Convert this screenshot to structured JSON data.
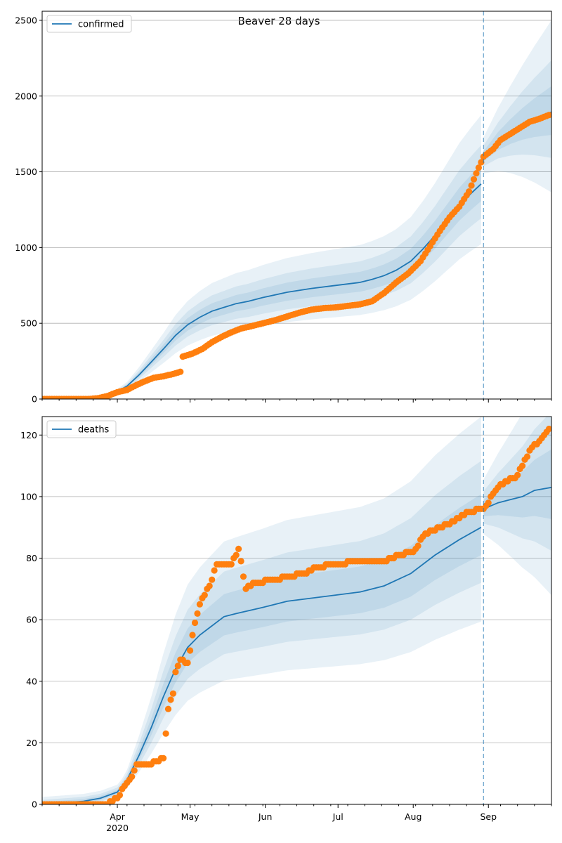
{
  "figure_title": "Beaver 28 days",
  "colors": {
    "band": "#1f77b4",
    "model": "#1f77b4",
    "observed": "#ff7f0e",
    "grid": "#b0b0b0"
  },
  "x_axis": {
    "month_ticks": [
      {
        "date": "2020-04-01",
        "label": "Apr",
        "sublabel": "2020"
      },
      {
        "date": "2020-05-01",
        "label": "May"
      },
      {
        "date": "2020-06-01",
        "label": "Jun"
      },
      {
        "date": "2020-07-01",
        "label": "Jul"
      },
      {
        "date": "2020-08-01",
        "label": "Aug"
      },
      {
        "date": "2020-09-01",
        "label": "Sep"
      }
    ],
    "range": [
      "2020-03-01",
      "2020-09-27"
    ]
  },
  "chart_data": [
    {
      "type": "line",
      "title": "Beaver 28 days",
      "legend": [
        "confirmed"
      ],
      "legend_position": "top-left",
      "grid": "horizontal",
      "ylim": [
        0,
        2560
      ],
      "yticks": [
        0,
        500,
        1000,
        1500,
        2000,
        2500
      ],
      "forecast_start": "2020-08-30",
      "model_line": [
        [
          "2020-03-01",
          0
        ],
        [
          "2020-03-15",
          2
        ],
        [
          "2020-03-25",
          12
        ],
        [
          "2020-04-01",
          50
        ],
        [
          "2020-04-05",
          85
        ],
        [
          "2020-04-10",
          160
        ],
        [
          "2020-04-15",
          245
        ],
        [
          "2020-04-20",
          330
        ],
        [
          "2020-04-25",
          420
        ],
        [
          "2020-04-30",
          490
        ],
        [
          "2020-05-05",
          540
        ],
        [
          "2020-05-10",
          580
        ],
        [
          "2020-05-15",
          605
        ],
        [
          "2020-05-20",
          630
        ],
        [
          "2020-05-25",
          645
        ],
        [
          "2020-05-31",
          670
        ],
        [
          "2020-06-10",
          705
        ],
        [
          "2020-06-20",
          730
        ],
        [
          "2020-06-30",
          750
        ],
        [
          "2020-07-10",
          770
        ],
        [
          "2020-07-15",
          790
        ],
        [
          "2020-07-20",
          815
        ],
        [
          "2020-07-25",
          850
        ],
        [
          "2020-07-31",
          910
        ],
        [
          "2020-08-05",
          990
        ],
        [
          "2020-08-10",
          1080
        ],
        [
          "2020-08-15",
          1180
        ],
        [
          "2020-08-20",
          1280
        ],
        [
          "2020-08-25",
          1360
        ],
        [
          "2020-08-29",
          1420
        ]
      ],
      "model_line_forecast": [
        [
          "2020-08-30",
          1600
        ],
        [
          "2020-09-05",
          1700
        ],
        [
          "2020-09-10",
          1760
        ],
        [
          "2020-09-15",
          1810
        ],
        [
          "2020-09-20",
          1850
        ],
        [
          "2020-09-27",
          1895
        ]
      ],
      "bands": [
        {
          "lower_offset": -0.28,
          "upper_offset": 0.32
        },
        {
          "lower_offset": -0.16,
          "upper_offset": 0.18
        },
        {
          "lower_offset": -0.08,
          "upper_offset": 0.09
        }
      ],
      "observed": [
        [
          "2020-03-01",
          0
        ],
        [
          "2020-03-20",
          0
        ],
        [
          "2020-03-24",
          5
        ],
        [
          "2020-03-28",
          20
        ],
        [
          "2020-04-01",
          45
        ],
        [
          "2020-04-05",
          60
        ],
        [
          "2020-04-08",
          85
        ],
        [
          "2020-04-12",
          115
        ],
        [
          "2020-04-16",
          140
        ],
        [
          "2020-04-20",
          150
        ],
        [
          "2020-04-24",
          165
        ],
        [
          "2020-04-27",
          180
        ],
        [
          "2020-04-28",
          280
        ],
        [
          "2020-05-02",
          300
        ],
        [
          "2020-05-06",
          330
        ],
        [
          "2020-05-10",
          375
        ],
        [
          "2020-05-14",
          410
        ],
        [
          "2020-05-18",
          440
        ],
        [
          "2020-05-22",
          465
        ],
        [
          "2020-05-26",
          480
        ],
        [
          "2020-05-31",
          500
        ],
        [
          "2020-06-05",
          520
        ],
        [
          "2020-06-10",
          545
        ],
        [
          "2020-06-15",
          570
        ],
        [
          "2020-06-20",
          590
        ],
        [
          "2020-06-25",
          600
        ],
        [
          "2020-06-30",
          605
        ],
        [
          "2020-07-05",
          615
        ],
        [
          "2020-07-10",
          625
        ],
        [
          "2020-07-15",
          645
        ],
        [
          "2020-07-20",
          700
        ],
        [
          "2020-07-25",
          770
        ],
        [
          "2020-07-30",
          830
        ],
        [
          "2020-08-04",
          910
        ],
        [
          "2020-08-08",
          1010
        ],
        [
          "2020-08-12",
          1110
        ],
        [
          "2020-08-16",
          1200
        ],
        [
          "2020-08-20",
          1270
        ],
        [
          "2020-08-24",
          1370
        ],
        [
          "2020-08-27",
          1490
        ],
        [
          "2020-08-30",
          1600
        ],
        [
          "2020-09-03",
          1650
        ],
        [
          "2020-09-06",
          1710
        ],
        [
          "2020-09-10",
          1750
        ],
        [
          "2020-09-14",
          1790
        ],
        [
          "2020-09-18",
          1830
        ],
        [
          "2020-09-22",
          1850
        ],
        [
          "2020-09-26",
          1875
        ]
      ]
    },
    {
      "type": "line",
      "legend": [
        "deaths"
      ],
      "legend_position": "top-left",
      "grid": "horizontal",
      "ylim": [
        0,
        126
      ],
      "yticks": [
        0,
        20,
        40,
        60,
        80,
        100,
        120
      ],
      "forecast_start": "2020-08-30",
      "model_line": [
        [
          "2020-03-01",
          0
        ],
        [
          "2020-03-18",
          1
        ],
        [
          "2020-03-25",
          2
        ],
        [
          "2020-04-01",
          4
        ],
        [
          "2020-04-05",
          8
        ],
        [
          "2020-04-10",
          16
        ],
        [
          "2020-04-15",
          25
        ],
        [
          "2020-04-20",
          35
        ],
        [
          "2020-04-25",
          44
        ],
        [
          "2020-04-30",
          51
        ],
        [
          "2020-05-05",
          55
        ],
        [
          "2020-05-10",
          58
        ],
        [
          "2020-05-15",
          61
        ],
        [
          "2020-05-20",
          62
        ],
        [
          "2020-05-31",
          64
        ],
        [
          "2020-06-10",
          66
        ],
        [
          "2020-06-20",
          67
        ],
        [
          "2020-06-30",
          68
        ],
        [
          "2020-07-10",
          69
        ],
        [
          "2020-07-20",
          71
        ],
        [
          "2020-07-31",
          75
        ],
        [
          "2020-08-10",
          81
        ],
        [
          "2020-08-20",
          86
        ],
        [
          "2020-08-29",
          90
        ]
      ],
      "model_line_forecast": [
        [
          "2020-08-30",
          96
        ],
        [
          "2020-09-05",
          98
        ],
        [
          "2020-09-10",
          99
        ],
        [
          "2020-09-15",
          100
        ],
        [
          "2020-09-20",
          102
        ],
        [
          "2020-09-27",
          103
        ]
      ],
      "bands": [
        {
          "lower_offset": -0.34,
          "upper_offset": 0.4
        },
        {
          "lower_offset": -0.2,
          "upper_offset": 0.24
        },
        {
          "lower_offset": -0.1,
          "upper_offset": 0.12
        }
      ],
      "observed": [
        [
          "2020-03-01",
          0
        ],
        [
          "2020-03-20",
          0
        ],
        [
          "2020-03-28",
          0
        ],
        [
          "2020-04-01",
          2
        ],
        [
          "2020-04-04",
          6
        ],
        [
          "2020-04-07",
          9
        ],
        [
          "2020-04-09",
          13
        ],
        [
          "2020-04-14",
          13
        ],
        [
          "2020-04-17",
          14
        ],
        [
          "2020-04-20",
          15
        ],
        [
          "2020-04-22",
          31
        ],
        [
          "2020-04-24",
          36
        ],
        [
          "2020-04-25",
          43
        ],
        [
          "2020-04-27",
          47
        ],
        [
          "2020-04-30",
          46
        ],
        [
          "2020-05-03",
          59
        ],
        [
          "2020-05-05",
          65
        ],
        [
          "2020-05-07",
          68
        ],
        [
          "2020-05-10",
          73
        ],
        [
          "2020-05-12",
          78
        ],
        [
          "2020-05-18",
          78
        ],
        [
          "2020-05-21",
          83
        ],
        [
          "2020-05-24",
          70
        ],
        [
          "2020-05-28",
          72
        ],
        [
          "2020-06-05",
          73
        ],
        [
          "2020-06-10",
          74
        ],
        [
          "2020-06-18",
          75
        ],
        [
          "2020-06-22",
          77
        ],
        [
          "2020-06-30",
          78
        ],
        [
          "2020-07-10",
          79
        ],
        [
          "2020-07-20",
          79
        ],
        [
          "2020-07-26",
          81
        ],
        [
          "2020-08-01",
          82
        ],
        [
          "2020-08-06",
          88
        ],
        [
          "2020-08-12",
          90
        ],
        [
          "2020-08-18",
          92
        ],
        [
          "2020-08-24",
          95
        ],
        [
          "2020-08-30",
          96
        ],
        [
          "2020-09-04",
          102
        ],
        [
          "2020-09-08",
          105
        ],
        [
          "2020-09-12",
          106
        ],
        [
          "2020-09-15",
          110
        ],
        [
          "2020-09-19",
          116
        ],
        [
          "2020-09-22",
          118
        ],
        [
          "2020-09-24",
          120
        ],
        [
          "2020-09-26",
          122
        ]
      ]
    }
  ]
}
